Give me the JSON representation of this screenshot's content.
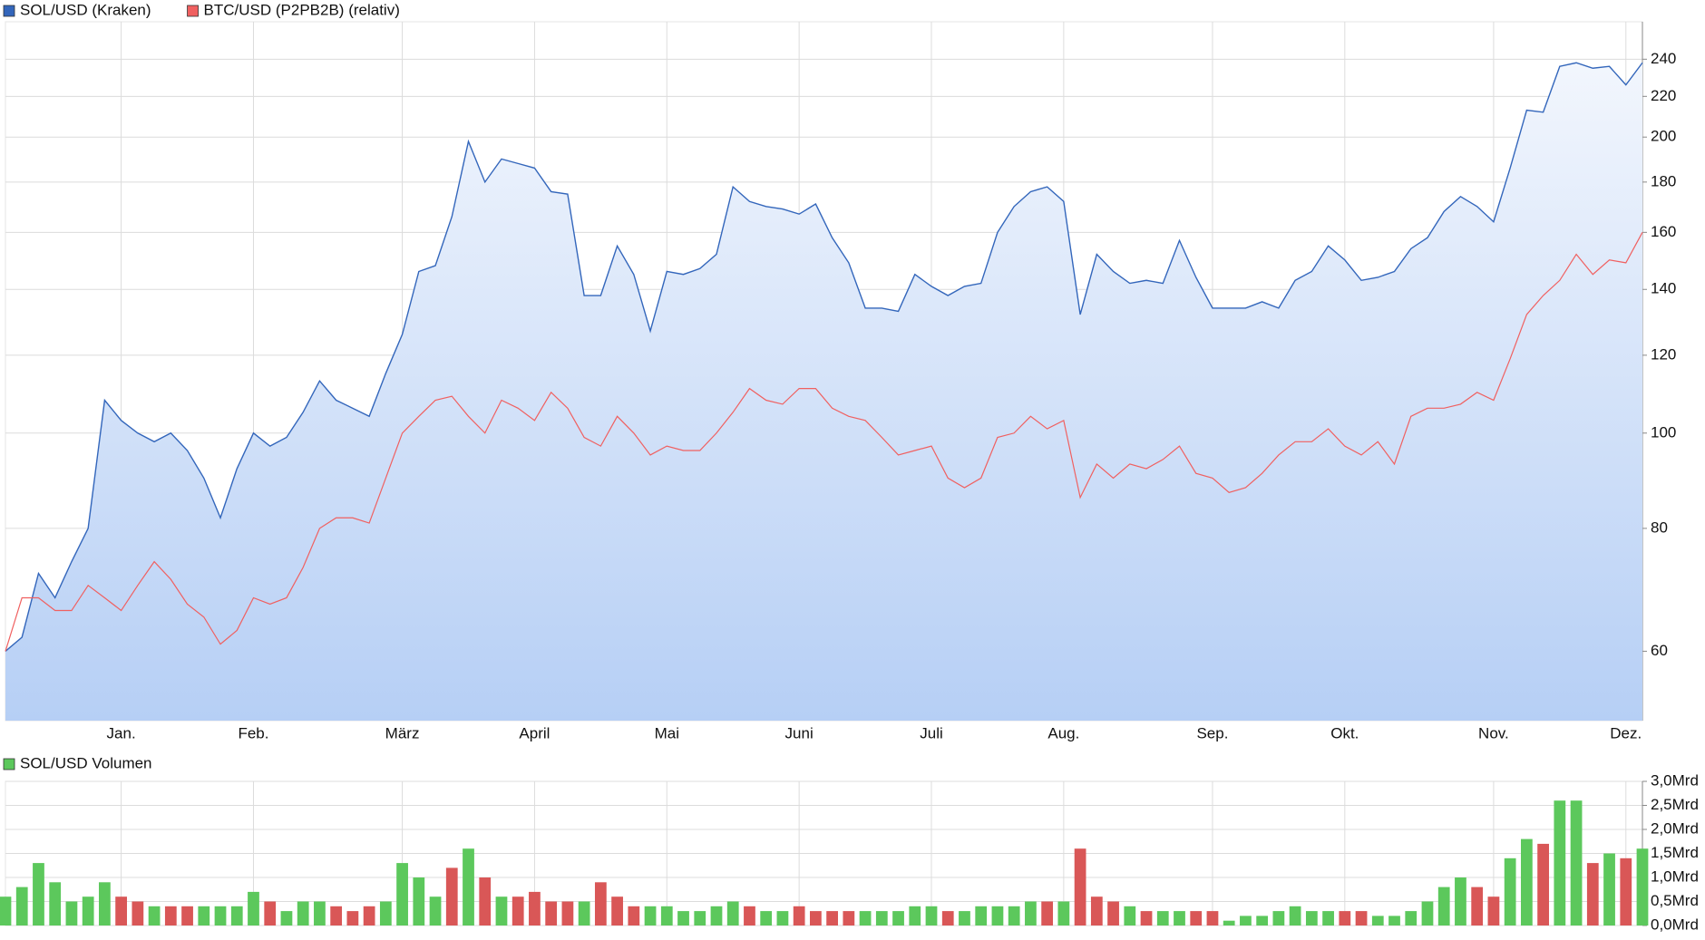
{
  "chart_data": [
    {
      "type": "line",
      "log_scale": true,
      "grid": true,
      "legend": "top-left",
      "categories": [
        null,
        null,
        null,
        null,
        null,
        null,
        null,
        "Jan.",
        null,
        null,
        null,
        null,
        null,
        null,
        null,
        "Feb.",
        null,
        null,
        null,
        null,
        null,
        null,
        null,
        null,
        "März",
        null,
        null,
        null,
        null,
        null,
        null,
        null,
        "April",
        null,
        null,
        null,
        null,
        null,
        null,
        null,
        "Mai",
        null,
        null,
        null,
        null,
        null,
        null,
        null,
        "Juni",
        null,
        null,
        null,
        null,
        null,
        null,
        null,
        "Juli",
        null,
        null,
        null,
        null,
        null,
        null,
        null,
        "Aug.",
        null,
        null,
        null,
        null,
        null,
        null,
        null,
        null,
        "Sep.",
        null,
        null,
        null,
        null,
        null,
        null,
        null,
        "Okt.",
        null,
        null,
        null,
        null,
        null,
        null,
        null,
        null,
        "Nov.",
        null,
        null,
        null,
        null,
        null,
        null,
        null,
        "Dez.",
        null
      ],
      "series": [
        {
          "name": "SOL/USD (Kraken)",
          "color": "#3366bb",
          "area": true,
          "values": [
            60,
            62,
            72,
            68,
            74,
            80,
            108,
            103,
            100,
            98,
            100,
            96,
            90,
            82,
            92,
            100,
            97,
            99,
            105,
            113,
            108,
            106,
            104,
            115,
            126,
            146,
            148,
            166,
            198,
            180,
            190,
            188,
            186,
            176,
            175,
            138,
            138,
            155,
            145,
            127,
            146,
            145,
            147,
            152,
            178,
            172,
            170,
            169,
            167,
            171,
            158,
            149,
            134,
            134,
            133,
            145,
            141,
            138,
            141,
            142,
            160,
            170,
            176,
            178,
            172,
            132,
            152,
            146,
            142,
            143,
            142,
            157,
            144,
            134,
            134,
            134,
            136,
            134,
            143,
            146,
            155,
            150,
            143,
            144,
            146,
            154,
            158,
            168,
            174,
            170,
            164,
            186,
            213,
            212,
            236,
            238,
            235,
            236,
            226,
            238
          ]
        },
        {
          "name": "BTC/USD (P2PB2B) (relativ)",
          "color": "#f06060",
          "area": false,
          "values": [
            60,
            68,
            68,
            66,
            66,
            70,
            68,
            66,
            70,
            74,
            71,
            67,
            65,
            61,
            63,
            68,
            67,
            68,
            73,
            80,
            82,
            82,
            81,
            90,
            100,
            104,
            108,
            109,
            104,
            100,
            108,
            106,
            103,
            110,
            106,
            99,
            97,
            104,
            100,
            95,
            97,
            96,
            96,
            100,
            105,
            111,
            108,
            107,
            111,
            111,
            106,
            104,
            103,
            99,
            95,
            96,
            97,
            90,
            88,
            90,
            99,
            100,
            104,
            101,
            103,
            86,
            93,
            90,
            93,
            92,
            94,
            97,
            91,
            90,
            87,
            88,
            91,
            95,
            98,
            98,
            101,
            97,
            95,
            98,
            93,
            104,
            106,
            106,
            107,
            110,
            108,
            119,
            132,
            138,
            143,
            152,
            145,
            150,
            149,
            160
          ]
        }
      ],
      "ylim": [
        51,
        262
      ],
      "yticks": [
        60,
        80,
        100,
        120,
        140,
        160,
        180,
        200,
        220,
        240
      ]
    },
    {
      "type": "bar",
      "grid": true,
      "legend": "top-left",
      "series": [
        {
          "name": "SOL/USD Volumen",
          "color": "#5cc85c",
          "values": [
            0.6,
            0.8,
            1.3,
            0.9,
            0.5,
            0.6,
            0.9,
            0.6,
            0.5,
            0.4,
            0.4,
            0.4,
            0.4,
            0.4,
            0.4,
            0.7,
            0.5,
            0.3,
            0.5,
            0.5,
            0.4,
            0.3,
            0.4,
            0.5,
            1.3,
            1.0,
            0.6,
            1.2,
            1.6,
            1.0,
            0.6,
            0.6,
            0.7,
            0.5,
            0.5,
            0.5,
            0.9,
            0.6,
            0.4,
            0.4,
            0.4,
            0.3,
            0.3,
            0.4,
            0.5,
            0.4,
            0.3,
            0.3,
            0.4,
            0.3,
            0.3,
            0.3,
            0.3,
            0.3,
            0.3,
            0.4,
            0.4,
            0.3,
            0.3,
            0.4,
            0.4,
            0.4,
            0.5,
            0.5,
            0.5,
            1.6,
            0.6,
            0.5,
            0.4,
            0.3,
            0.3,
            0.3,
            0.3,
            0.3,
            0.1,
            0.2,
            0.2,
            0.3,
            0.4,
            0.3,
            0.3,
            0.3,
            0.3,
            0.2,
            0.2,
            0.3,
            0.5,
            0.8,
            1.0,
            0.8,
            0.6,
            1.4,
            1.8,
            1.7,
            2.6,
            2.6,
            1.3,
            1.5,
            1.4,
            1.6
          ],
          "colors": [
            "#5cc85c",
            "#5cc85c",
            "#5cc85c",
            "#5cc85c",
            "#5cc85c",
            "#5cc85c",
            "#5cc85c",
            "#d95757",
            "#d95757",
            "#5cc85c",
            "#d95757",
            "#d95757",
            "#5cc85c",
            "#5cc85c",
            "#5cc85c",
            "#5cc85c",
            "#d95757",
            "#5cc85c",
            "#5cc85c",
            "#5cc85c",
            "#d95757",
            "#d95757",
            "#d95757",
            "#5cc85c",
            "#5cc85c",
            "#5cc85c",
            "#5cc85c",
            "#d95757",
            "#5cc85c",
            "#d95757",
            "#5cc85c",
            "#d95757",
            "#d95757",
            "#d95757",
            "#d95757",
            "#5cc85c",
            "#d95757",
            "#d95757",
            "#d95757",
            "#5cc85c",
            "#5cc85c",
            "#5cc85c",
            "#5cc85c",
            "#5cc85c",
            "#5cc85c",
            "#d95757",
            "#5cc85c",
            "#5cc85c",
            "#d95757",
            "#d95757",
            "#d95757",
            "#d95757",
            "#5cc85c",
            "#5cc85c",
            "#5cc85c",
            "#5cc85c",
            "#5cc85c",
            "#d95757",
            "#5cc85c",
            "#5cc85c",
            "#5cc85c",
            "#5cc85c",
            "#5cc85c",
            "#d95757",
            "#5cc85c",
            "#d95757",
            "#d95757",
            "#d95757",
            "#5cc85c",
            "#d95757",
            "#5cc85c",
            "#5cc85c",
            "#d95757",
            "#d95757",
            "#5cc85c",
            "#5cc85c",
            "#5cc85c",
            "#5cc85c",
            "#5cc85c",
            "#5cc85c",
            "#5cc85c",
            "#d95757",
            "#d95757",
            "#5cc85c",
            "#5cc85c",
            "#5cc85c",
            "#5cc85c",
            "#5cc85c",
            "#5cc85c",
            "#d95757",
            "#d95757",
            "#5cc85c",
            "#5cc85c",
            "#d95757",
            "#5cc85c",
            "#5cc85c",
            "#d95757",
            "#5cc85c",
            "#d95757",
            "#5cc85c"
          ]
        }
      ],
      "ylim": [
        0,
        3
      ],
      "yticks": [
        {
          "value": 0,
          "label": "0,0Mrd"
        },
        {
          "value": 0.5,
          "label": "0,5Mrd"
        },
        {
          "value": 1,
          "label": "1,0Mrd"
        },
        {
          "value": 1.5,
          "label": "1,5Mrd"
        },
        {
          "value": 2,
          "label": "2,0Mrd"
        },
        {
          "value": 2.5,
          "label": "2,5Mrd"
        },
        {
          "value": 3,
          "label": "3,0Mrd"
        }
      ]
    }
  ]
}
